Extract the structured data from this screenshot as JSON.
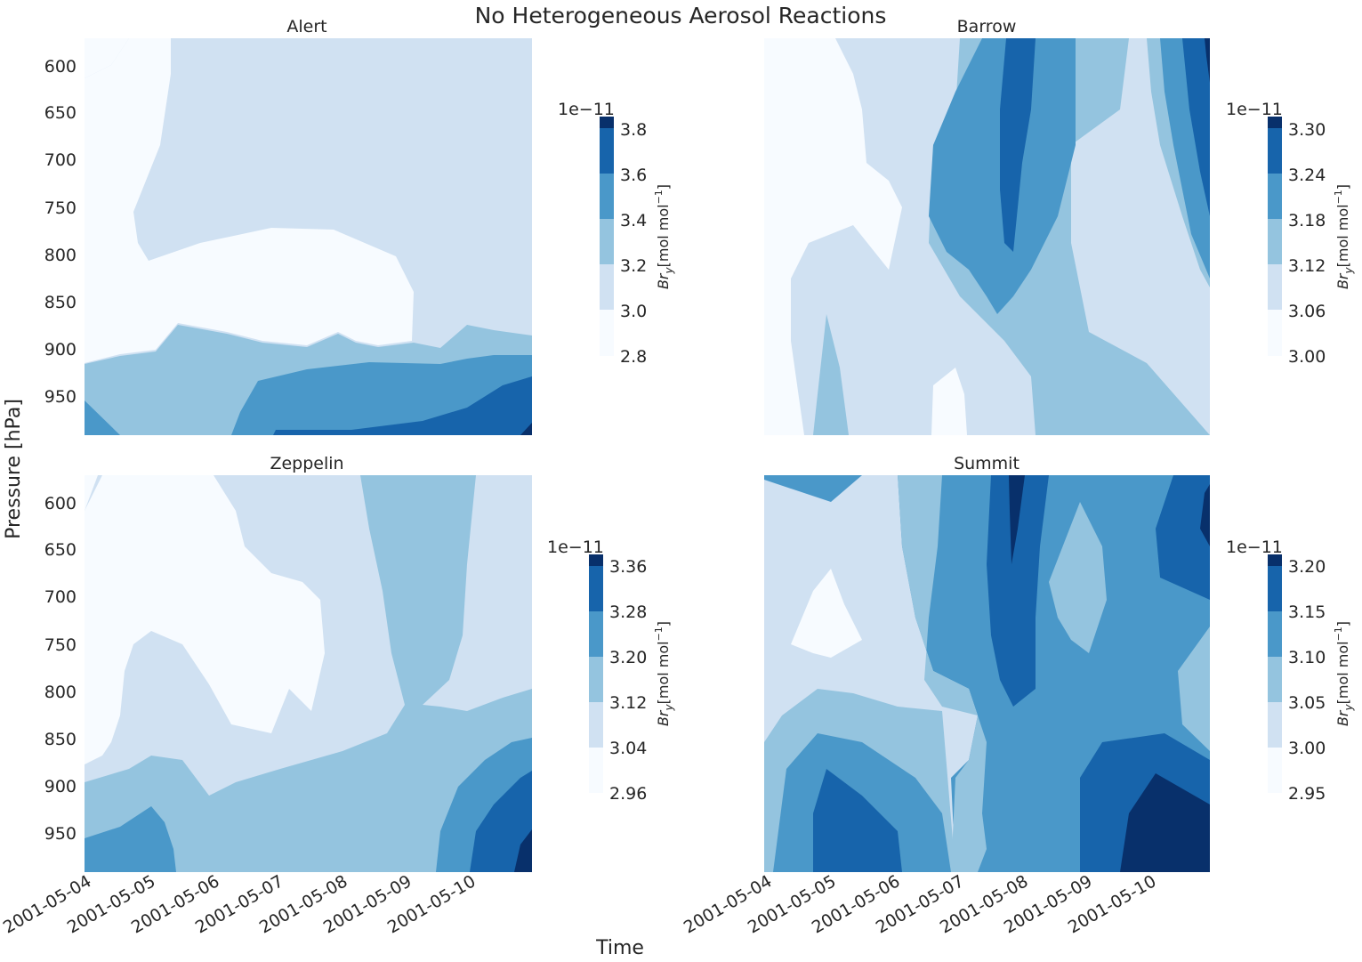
{
  "figure": {
    "suptitle": "No Heterogeneous Aerosol Reactions",
    "xlabel": "Time",
    "ylabel": "Pressure [hPa]"
  },
  "palette": [
    "#f7fbff",
    "#d0e1f2",
    "#94c4df",
    "#4a98c9",
    "#1764ab",
    "#08306b"
  ],
  "chart_data": [
    {
      "type": "contour",
      "title": "Alert",
      "x": [
        "2001-05-04",
        "2001-05-05",
        "2001-05-06",
        "2001-05-07",
        "2001-05-08",
        "2001-05-09",
        "2001-05-10"
      ],
      "y_ticks": [
        600,
        650,
        700,
        750,
        800,
        850,
        900,
        950
      ],
      "ylim": [
        995,
        575
      ],
      "y_inverted": true,
      "colorbar": {
        "label": "Br_y [mol mol^-1]",
        "label_main": "Br",
        "label_sub": "y",
        "label_unit": "[mol mol",
        "label_exp": "−1",
        "label_close": "]",
        "offset": "1e−11",
        "ticks": [
          "2.8",
          "3.0",
          "3.2",
          "3.4",
          "3.6",
          "3.8"
        ],
        "levels": [
          2.8,
          3.0,
          3.2,
          3.4,
          3.6,
          3.8,
          3.85
        ]
      },
      "show_xticklabels": true,
      "show_yticklabels": true
    },
    {
      "type": "contour",
      "title": "Barrow",
      "x": [
        "2001-05-04",
        "2001-05-05",
        "2001-05-06",
        "2001-05-07",
        "2001-05-08",
        "2001-05-09",
        "2001-05-10"
      ],
      "y_ticks": [
        600,
        650,
        700,
        750,
        800,
        850,
        900,
        950
      ],
      "ylim": [
        995,
        575
      ],
      "y_inverted": true,
      "colorbar": {
        "label": "Br_y [mol mol^-1]",
        "label_main": "Br",
        "label_sub": "y",
        "label_unit": "[mol mol",
        "label_exp": "−1",
        "label_close": "]",
        "offset": "1e−11",
        "ticks": [
          "3.00",
          "3.06",
          "3.12",
          "3.18",
          "3.24",
          "3.30"
        ],
        "levels": [
          3.0,
          3.06,
          3.12,
          3.18,
          3.24,
          3.3,
          3.315
        ]
      },
      "show_xticklabels": true,
      "show_yticklabels": false
    },
    {
      "type": "contour",
      "title": "Zeppelin",
      "x": [
        "2001-05-04",
        "2001-05-05",
        "2001-05-06",
        "2001-05-07",
        "2001-05-08",
        "2001-05-09",
        "2001-05-10"
      ],
      "y_ticks": [
        600,
        650,
        700,
        750,
        800,
        850,
        900,
        950
      ],
      "ylim": [
        995,
        575
      ],
      "y_inverted": true,
      "colorbar": {
        "label": "Br_y [mol mol^-1]",
        "label_main": "Br",
        "label_sub": "y",
        "label_unit": "[mol mol",
        "label_exp": "−1",
        "label_close": "]",
        "offset": "1e−11",
        "ticks": [
          "2.96",
          "3.04",
          "3.12",
          "3.20",
          "3.28",
          "3.36"
        ],
        "levels": [
          2.96,
          3.04,
          3.12,
          3.2,
          3.28,
          3.36,
          3.38
        ]
      },
      "show_xticklabels": true,
      "show_yticklabels": true
    },
    {
      "type": "contour",
      "title": "Summit",
      "x": [
        "2001-05-04",
        "2001-05-05",
        "2001-05-06",
        "2001-05-07",
        "2001-05-08",
        "2001-05-09",
        "2001-05-10"
      ],
      "y_ticks": [
        600,
        650,
        700,
        750,
        800,
        850,
        900,
        950
      ],
      "ylim": [
        995,
        575
      ],
      "y_inverted": true,
      "colorbar": {
        "label": "Br_y [mol mol^-1]",
        "label_main": "Br",
        "label_sub": "y",
        "label_unit": "[mol mol",
        "label_exp": "−1",
        "label_close": "]",
        "offset": "1e−11",
        "ticks": [
          "2.95",
          "3.00",
          "3.05",
          "3.10",
          "3.15",
          "3.20"
        ],
        "levels": [
          2.95,
          3.0,
          3.05,
          3.1,
          3.15,
          3.2,
          3.215
        ]
      },
      "show_xticklabels": true,
      "show_yticklabels": false
    }
  ]
}
